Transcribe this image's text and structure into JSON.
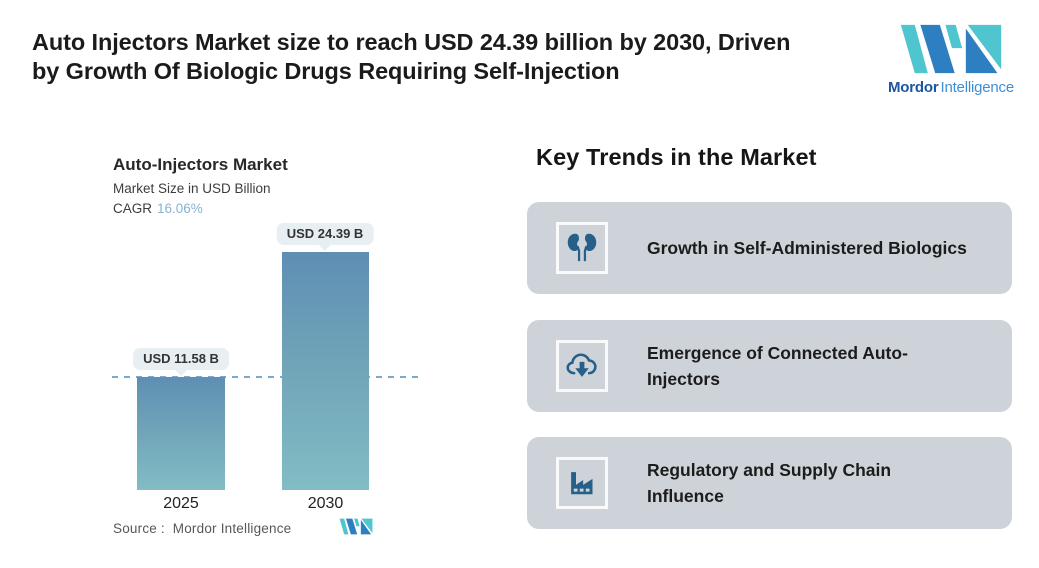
{
  "title": {
    "line1": "Auto Injectors Market size to reach USD 24.39 billion by 2030, Driven",
    "line2": "by Growth Of Biologic Drugs Requiring Self-Injection"
  },
  "brand": {
    "name_bold": "Mordor",
    "name_light": "Intelligence"
  },
  "chart": {
    "title": "Auto-Injectors Market",
    "subtitle": "Market Size in USD Billion",
    "cagr_label": "CAGR",
    "cagr_value": "16.06%",
    "source": "Source :  Mordor Intelligence"
  },
  "chart_data": {
    "type": "bar",
    "categories": [
      "2025",
      "2030"
    ],
    "values": [
      11.58,
      24.39
    ],
    "value_labels": [
      "USD 11.58 B",
      "USD 24.39 B"
    ],
    "title": "Auto-Injectors Market",
    "ylabel": "Market Size in USD Billion",
    "cagr_pct": 16.06,
    "ylim": [
      0,
      27
    ],
    "grid": false,
    "annotations": [
      "horizontal dashed reference line at 2025 value (USD 11.58 B)"
    ],
    "source": "Mordor Intelligence"
  },
  "trends": {
    "heading": "Key Trends in the Market",
    "cards": [
      {
        "icon": "kidneys-icon",
        "text": "Growth in Self-Administered Biologics"
      },
      {
        "icon": "cloud-download-icon",
        "text": "Emergence of Connected Auto-Injectors"
      },
      {
        "icon": "factory-icon",
        "text": "Regulatory and Supply Chain Influence"
      }
    ]
  },
  "colors": {
    "bar_gradient_top": "#5e8fb3",
    "bar_gradient_bottom": "#82bcc4",
    "dashed_line": "#7aa9cc",
    "bubble_bg": "#e8eff3",
    "card_bg": "#cdd3d9",
    "icon_blue": "#265f88",
    "brand_teal": "#4ec5cf",
    "brand_blue": "#2e7fc2",
    "cagr_value_blue": "#87b3d0"
  }
}
